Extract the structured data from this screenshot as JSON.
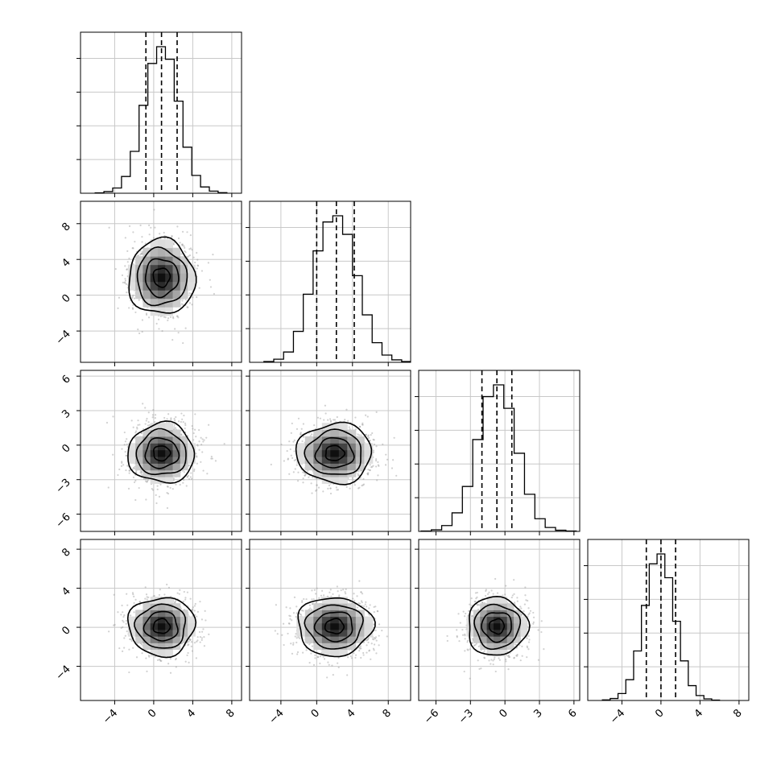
{
  "chart_data": {
    "type": "corner",
    "n_params": 4,
    "grid": true,
    "style": {
      "axis_color": "#000000",
      "grid_color": "#c8c8c8",
      "point_color": "#9a9a9a",
      "hist_color": "#000000",
      "contour_color": "#000000"
    },
    "params": [
      {
        "range": [
          -7.5,
          9.0
        ],
        "ticks": [
          -4,
          0,
          4,
          8
        ],
        "tick_labels": [
          "−4",
          "0",
          "4",
          "8"
        ],
        "mean": 0.8,
        "sd": 1.7,
        "quantiles": [
          -0.8,
          0.8,
          2.4
        ]
      },
      {
        "range": [
          -7.5,
          10.5
        ],
        "ticks": [
          -4,
          0,
          4,
          8
        ],
        "tick_labels": [
          "−4",
          "0",
          "4",
          "8"
        ],
        "mean": 2.0,
        "sd": 2.1,
        "quantiles": [
          0.0,
          2.2,
          4.2
        ]
      },
      {
        "range": [
          -7.5,
          6.5
        ],
        "ticks": [
          -6,
          -3,
          0,
          3,
          6
        ],
        "tick_labels": [
          "−6",
          "−3",
          "0",
          "3",
          "6"
        ],
        "mean": -0.7,
        "sd": 1.3,
        "quantiles": [
          -2.0,
          -0.7,
          0.6
        ]
      },
      {
        "range": [
          -7.5,
          9.0
        ],
        "ticks": [
          -4,
          0,
          4,
          8
        ],
        "tick_labels": [
          "−4",
          "0",
          "4",
          "8"
        ],
        "mean": 0.1,
        "sd": 1.5,
        "quantiles": [
          -1.5,
          0.0,
          1.5
        ]
      }
    ],
    "histograms": [
      {
        "bin_edges": [
          -6.0,
          -5.1,
          -4.2,
          -3.3,
          -2.4,
          -1.5,
          -0.6,
          0.3,
          1.2,
          2.1,
          3.0,
          3.9,
          4.8,
          5.7,
          6.6,
          7.5
        ],
        "counts": [
          2,
          8,
          25,
          80,
          200,
          420,
          620,
          700,
          640,
          440,
          220,
          85,
          30,
          10,
          3
        ]
      },
      {
        "bin_edges": [
          -5.9,
          -4.8,
          -3.7,
          -2.6,
          -1.5,
          -0.4,
          0.7,
          1.8,
          2.9,
          4.0,
          5.1,
          6.2,
          7.3,
          8.4,
          9.5,
          10.5
        ],
        "counts": [
          4,
          15,
          50,
          150,
          330,
          540,
          680,
          710,
          620,
          420,
          230,
          95,
          35,
          12,
          4
        ]
      },
      {
        "bin_edges": [
          -7.3,
          -6.4,
          -5.5,
          -4.6,
          -3.7,
          -2.8,
          -1.9,
          -1.0,
          -0.1,
          0.8,
          1.7,
          2.6,
          3.5,
          4.4,
          5.3,
          6.2
        ],
        "counts": [
          2,
          8,
          30,
          95,
          230,
          470,
          690,
          750,
          630,
          400,
          190,
          65,
          20,
          6,
          2
        ]
      },
      {
        "bin_edges": [
          -6.0,
          -5.2,
          -4.4,
          -3.6,
          -2.8,
          -2.0,
          -1.2,
          -0.4,
          0.4,
          1.2,
          2.0,
          2.8,
          3.6,
          4.4,
          5.2,
          6.0
        ],
        "counts": [
          3,
          10,
          35,
          105,
          250,
          480,
          690,
          740,
          620,
          400,
          200,
          75,
          25,
          8,
          2
        ]
      }
    ],
    "panels_2d": [
      {
        "row": 1,
        "col": 0,
        "center": [
          0.8,
          2.0
        ],
        "sd": [
          1.7,
          2.1
        ]
      },
      {
        "row": 2,
        "col": 0,
        "center": [
          0.8,
          -0.7
        ],
        "sd": [
          1.7,
          1.3
        ]
      },
      {
        "row": 2,
        "col": 1,
        "center": [
          2.0,
          -0.7
        ],
        "sd": [
          2.1,
          1.3
        ]
      },
      {
        "row": 3,
        "col": 0,
        "center": [
          0.8,
          0.1
        ],
        "sd": [
          1.7,
          1.5
        ]
      },
      {
        "row": 3,
        "col": 1,
        "center": [
          2.0,
          0.1
        ],
        "sd": [
          2.1,
          1.5
        ]
      },
      {
        "row": 3,
        "col": 2,
        "center": [
          -0.7,
          0.1
        ],
        "sd": [
          1.3,
          1.5
        ]
      }
    ],
    "contour_sigma_levels": [
      0.5,
      1.0,
      1.5,
      2.0
    ]
  }
}
